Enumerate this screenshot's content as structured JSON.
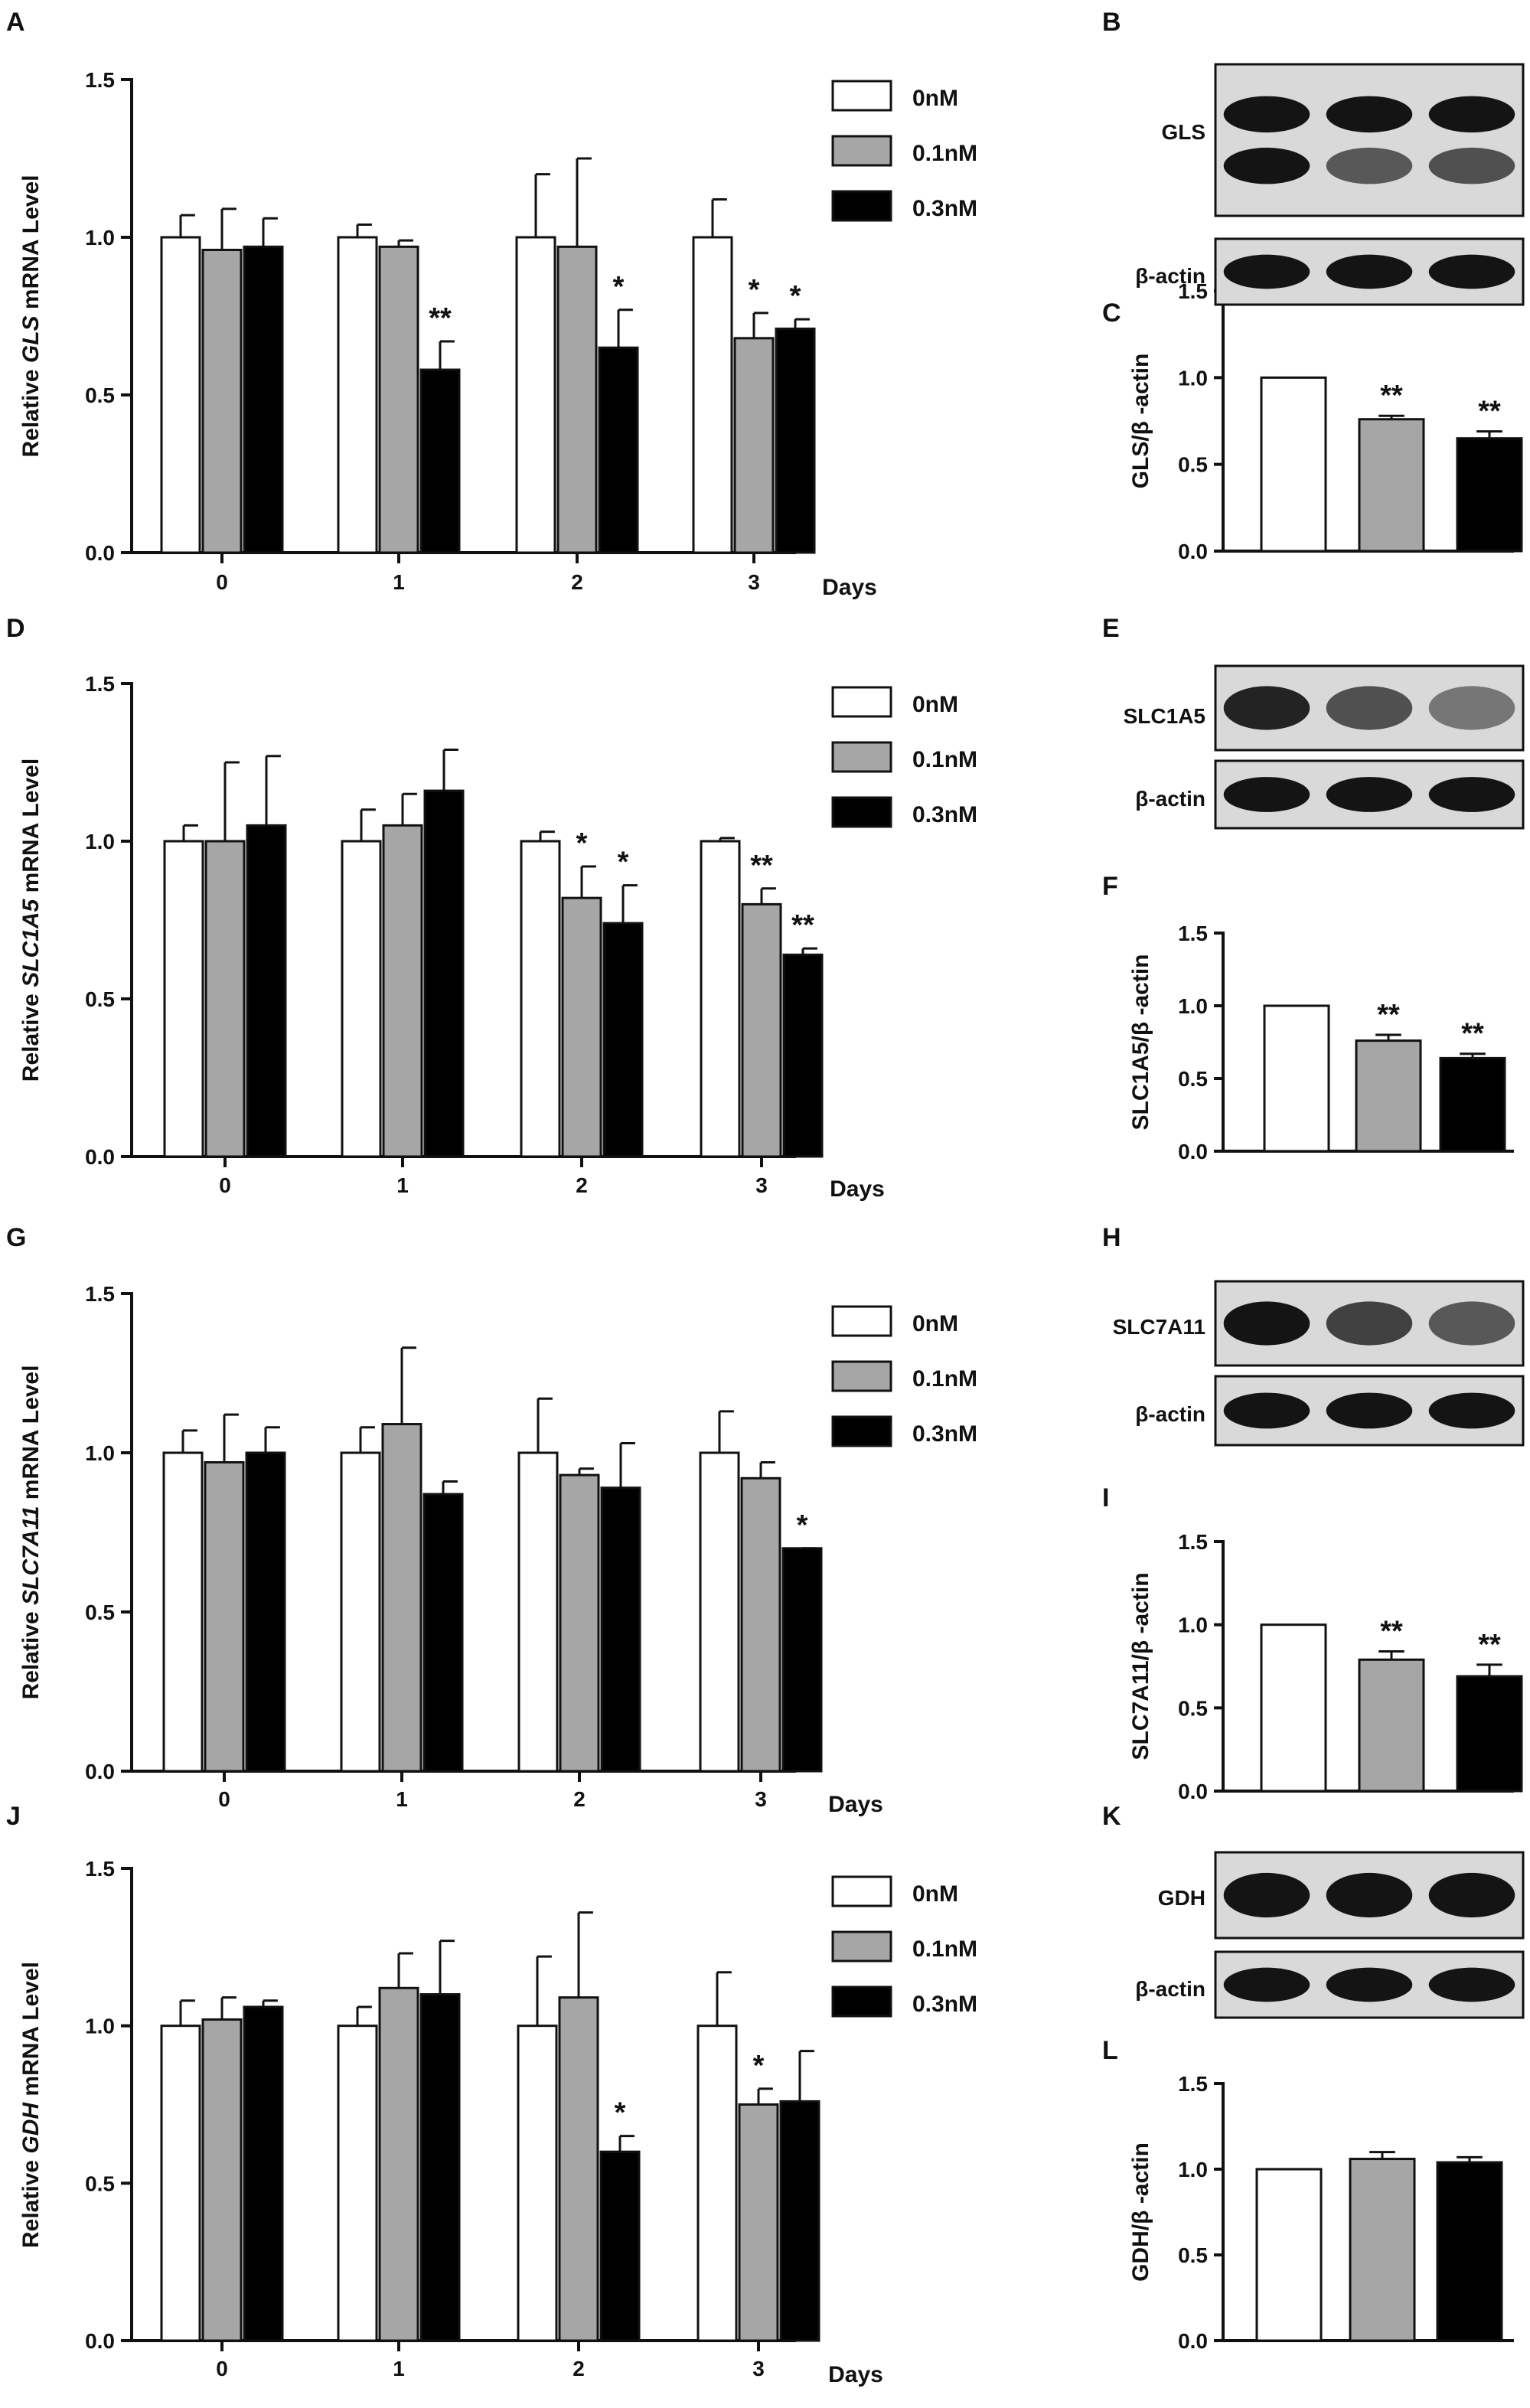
{
  "chart_data": [
    {
      "panel": "A",
      "type": "bar",
      "categories": [
        "0",
        "1",
        "2",
        "3"
      ],
      "xlabel": "Days",
      "ylabel_prefix": "Relative",
      "ylabel_gene": "GLS",
      "ylabel_suffix": "mRNA Level",
      "ylim": [
        0,
        1.5
      ],
      "yticks": [
        "0.0",
        "0.5",
        "1.0",
        "1.5"
      ],
      "legend": [
        "0nM",
        "0.1nM",
        "0.3nM"
      ],
      "series": [
        {
          "name": "0nM",
          "values": [
            1.0,
            1.0,
            1.0,
            1.0
          ],
          "errors": [
            0.07,
            0.04,
            0.2,
            0.12
          ]
        },
        {
          "name": "0.1nM",
          "values": [
            0.96,
            0.97,
            0.97,
            0.68
          ],
          "errors": [
            0.13,
            0.02,
            0.28,
            0.08
          ]
        },
        {
          "name": "0.3nM",
          "values": [
            0.97,
            0.58,
            0.65,
            0.71
          ],
          "errors": [
            0.09,
            0.09,
            0.12,
            0.03
          ]
        }
      ],
      "significance": [
        {
          "group": 1,
          "series": 2,
          "text": "**"
        },
        {
          "group": 2,
          "series": 2,
          "text": "*"
        },
        {
          "group": 3,
          "series": 1,
          "text": "*"
        },
        {
          "group": 3,
          "series": 2,
          "text": "*"
        }
      ]
    },
    {
      "panel": "C",
      "type": "bar",
      "ylabel": "GLS/β -actin",
      "ylim": [
        0,
        1.5
      ],
      "yticks": [
        "0.0",
        "0.5",
        "1.0",
        "1.5"
      ],
      "values": [
        1.0,
        0.76,
        0.65
      ],
      "errors": [
        0.0,
        0.02,
        0.04
      ],
      "significance": [
        "",
        "**",
        "**"
      ]
    },
    {
      "panel": "D",
      "type": "bar",
      "categories": [
        "0",
        "1",
        "2",
        "3"
      ],
      "xlabel": "Days",
      "ylabel_prefix": "Relative",
      "ylabel_gene": "SLC1A5",
      "ylabel_suffix": "mRNA Level",
      "ylim": [
        0,
        1.5
      ],
      "yticks": [
        "0.0",
        "0.5",
        "1.0",
        "1.5"
      ],
      "legend": [
        "0nM",
        "0.1nM",
        "0.3nM"
      ],
      "series": [
        {
          "name": "0nM",
          "values": [
            1.0,
            1.0,
            1.0,
            1.0
          ],
          "errors": [
            0.05,
            0.1,
            0.03,
            0.01
          ]
        },
        {
          "name": "0.1nM",
          "values": [
            1.0,
            1.05,
            0.82,
            0.8
          ],
          "errors": [
            0.25,
            0.1,
            0.1,
            0.05
          ]
        },
        {
          "name": "0.3nM",
          "values": [
            1.05,
            1.16,
            0.74,
            0.64
          ],
          "errors": [
            0.22,
            0.13,
            0.12,
            0.02
          ]
        }
      ],
      "significance": [
        {
          "group": 2,
          "series": 1,
          "text": "*"
        },
        {
          "group": 2,
          "series": 2,
          "text": "*"
        },
        {
          "group": 3,
          "series": 1,
          "text": "**"
        },
        {
          "group": 3,
          "series": 2,
          "text": "**"
        }
      ]
    },
    {
      "panel": "F",
      "type": "bar",
      "ylabel": "SLC1A5/β -actin",
      "ylim": [
        0,
        1.5
      ],
      "yticks": [
        "0.0",
        "0.5",
        "1.0",
        "1.5"
      ],
      "values": [
        1.0,
        0.76,
        0.64
      ],
      "errors": [
        0.0,
        0.04,
        0.03
      ],
      "significance": [
        "",
        "**",
        "**"
      ]
    },
    {
      "panel": "G",
      "type": "bar",
      "categories": [
        "0",
        "1",
        "2",
        "3"
      ],
      "xlabel": "Days",
      "ylabel_prefix": "Relative",
      "ylabel_gene": "SLC7A11",
      "ylabel_suffix": "mRNA Level",
      "ylim": [
        0,
        1.5
      ],
      "yticks": [
        "0.0",
        "0.5",
        "1.0",
        "1.5"
      ],
      "legend": [
        "0nM",
        "0.1nM",
        "0.3nM"
      ],
      "series": [
        {
          "name": "0nM",
          "values": [
            1.0,
            1.0,
            1.0,
            1.0
          ],
          "errors": [
            0.07,
            0.08,
            0.17,
            0.13
          ]
        },
        {
          "name": "0.1nM",
          "values": [
            0.97,
            1.09,
            0.93,
            0.92
          ],
          "errors": [
            0.15,
            0.24,
            0.02,
            0.05
          ]
        },
        {
          "name": "0.3nM",
          "values": [
            1.0,
            0.87,
            0.89,
            0.7
          ],
          "errors": [
            0.08,
            0.04,
            0.14,
            0.0
          ]
        }
      ],
      "significance": [
        {
          "group": 3,
          "series": 2,
          "text": "*"
        }
      ]
    },
    {
      "panel": "I",
      "type": "bar",
      "ylabel": "SLC7A11/β -actin",
      "ylim": [
        0,
        1.5
      ],
      "yticks": [
        "0.0",
        "0.5",
        "1.0",
        "1.5"
      ],
      "values": [
        1.0,
        0.79,
        0.69
      ],
      "errors": [
        0.0,
        0.05,
        0.07
      ],
      "significance": [
        "",
        "**",
        "**"
      ]
    },
    {
      "panel": "J",
      "type": "bar",
      "categories": [
        "0",
        "1",
        "2",
        "3"
      ],
      "xlabel": "Days",
      "ylabel_prefix": "Relative",
      "ylabel_gene": "GDH",
      "ylabel_suffix": "mRNA Level",
      "ylim": [
        0,
        1.5
      ],
      "yticks": [
        "0.0",
        "0.5",
        "1.0",
        "1.5"
      ],
      "legend": [
        "0nM",
        "0.1nM",
        "0.3nM"
      ],
      "series": [
        {
          "name": "0nM",
          "values": [
            1.0,
            1.0,
            1.0,
            1.0
          ],
          "errors": [
            0.08,
            0.06,
            0.22,
            0.17
          ]
        },
        {
          "name": "0.1nM",
          "values": [
            1.02,
            1.12,
            1.09,
            0.75
          ],
          "errors": [
            0.07,
            0.11,
            0.27,
            0.05
          ]
        },
        {
          "name": "0.3nM",
          "values": [
            1.06,
            1.1,
            0.6,
            0.76
          ],
          "errors": [
            0.02,
            0.17,
            0.05,
            0.16
          ]
        }
      ],
      "significance": [
        {
          "group": 2,
          "series": 2,
          "text": "*"
        },
        {
          "group": 3,
          "series": 1,
          "text": "*"
        }
      ]
    },
    {
      "panel": "L",
      "type": "bar",
      "ylabel": "GDH/β -actin",
      "ylim": [
        0,
        1.5
      ],
      "yticks": [
        "0.0",
        "0.5",
        "1.0",
        "1.5"
      ],
      "values": [
        1.0,
        1.06,
        1.04
      ],
      "errors": [
        0.0,
        0.04,
        0.03
      ],
      "significance": [
        "",
        "",
        ""
      ]
    }
  ],
  "blots": [
    {
      "panel": "B",
      "bands": [
        {
          "label": "GLS",
          "intensity": [
            1.0,
            0.55,
            0.6
          ]
        },
        {
          "label": "β-actin",
          "intensity": [
            1.0,
            1.0,
            1.0
          ]
        }
      ]
    },
    {
      "panel": "E",
      "bands": [
        {
          "label": "SLC1A5",
          "intensity": [
            0.9,
            0.6,
            0.35
          ]
        },
        {
          "label": "β-actin",
          "intensity": [
            1.0,
            1.0,
            1.0
          ]
        }
      ]
    },
    {
      "panel": "H",
      "bands": [
        {
          "label": "SLC7A11",
          "intensity": [
            1.0,
            0.7,
            0.55
          ]
        },
        {
          "label": "β-actin",
          "intensity": [
            1.0,
            1.0,
            1.0
          ]
        }
      ]
    },
    {
      "panel": "K",
      "bands": [
        {
          "label": "GDH",
          "intensity": [
            1.0,
            1.0,
            1.0
          ]
        },
        {
          "label": "β-actin",
          "intensity": [
            1.0,
            1.0,
            1.0
          ]
        }
      ]
    }
  ],
  "colors": {
    "0nM": "#ffffff",
    "0.1nM": "#a6a6a6",
    "0.3nM": "#000000",
    "axis": "#111111"
  }
}
